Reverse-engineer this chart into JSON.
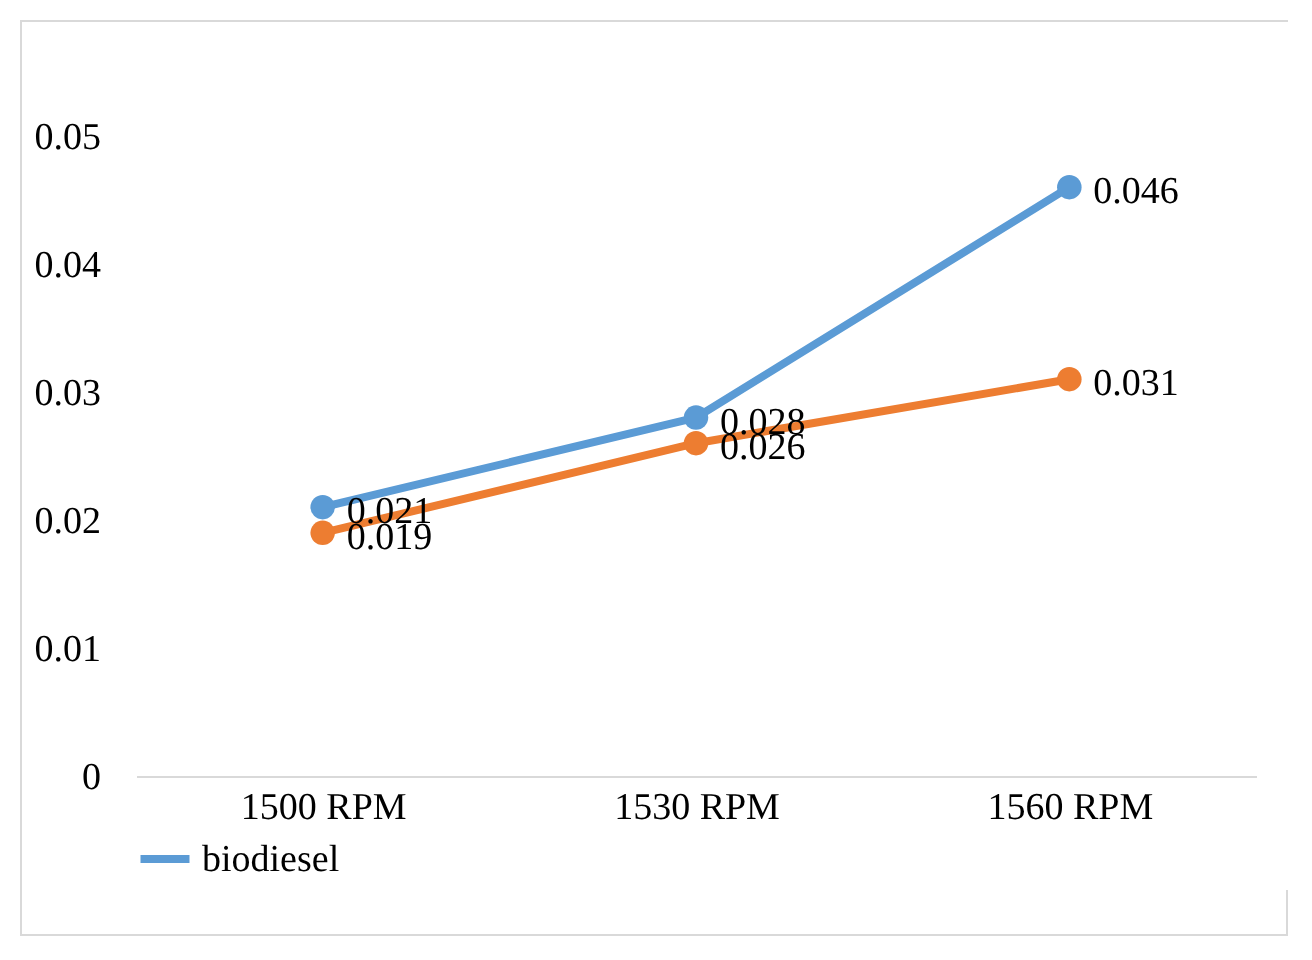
{
  "chart_data": {
    "type": "line",
    "categories": [
      "1500 RPM",
      "1530 RPM",
      "1560 RPM"
    ],
    "series": [
      {
        "name": "biodiesel",
        "color": "#5b9bd5",
        "values": [
          0.021,
          0.028,
          0.046
        ]
      },
      {
        "color": "#ed7d31",
        "values": [
          0.019,
          0.026,
          0.031
        ]
      }
    ],
    "ylim": [
      0,
      0.05
    ],
    "yticks": [
      0,
      0.01,
      0.02,
      0.03,
      0.04,
      0.05
    ],
    "marker": "circle",
    "data_labels": true,
    "legend": "bottom",
    "grid": false
  }
}
